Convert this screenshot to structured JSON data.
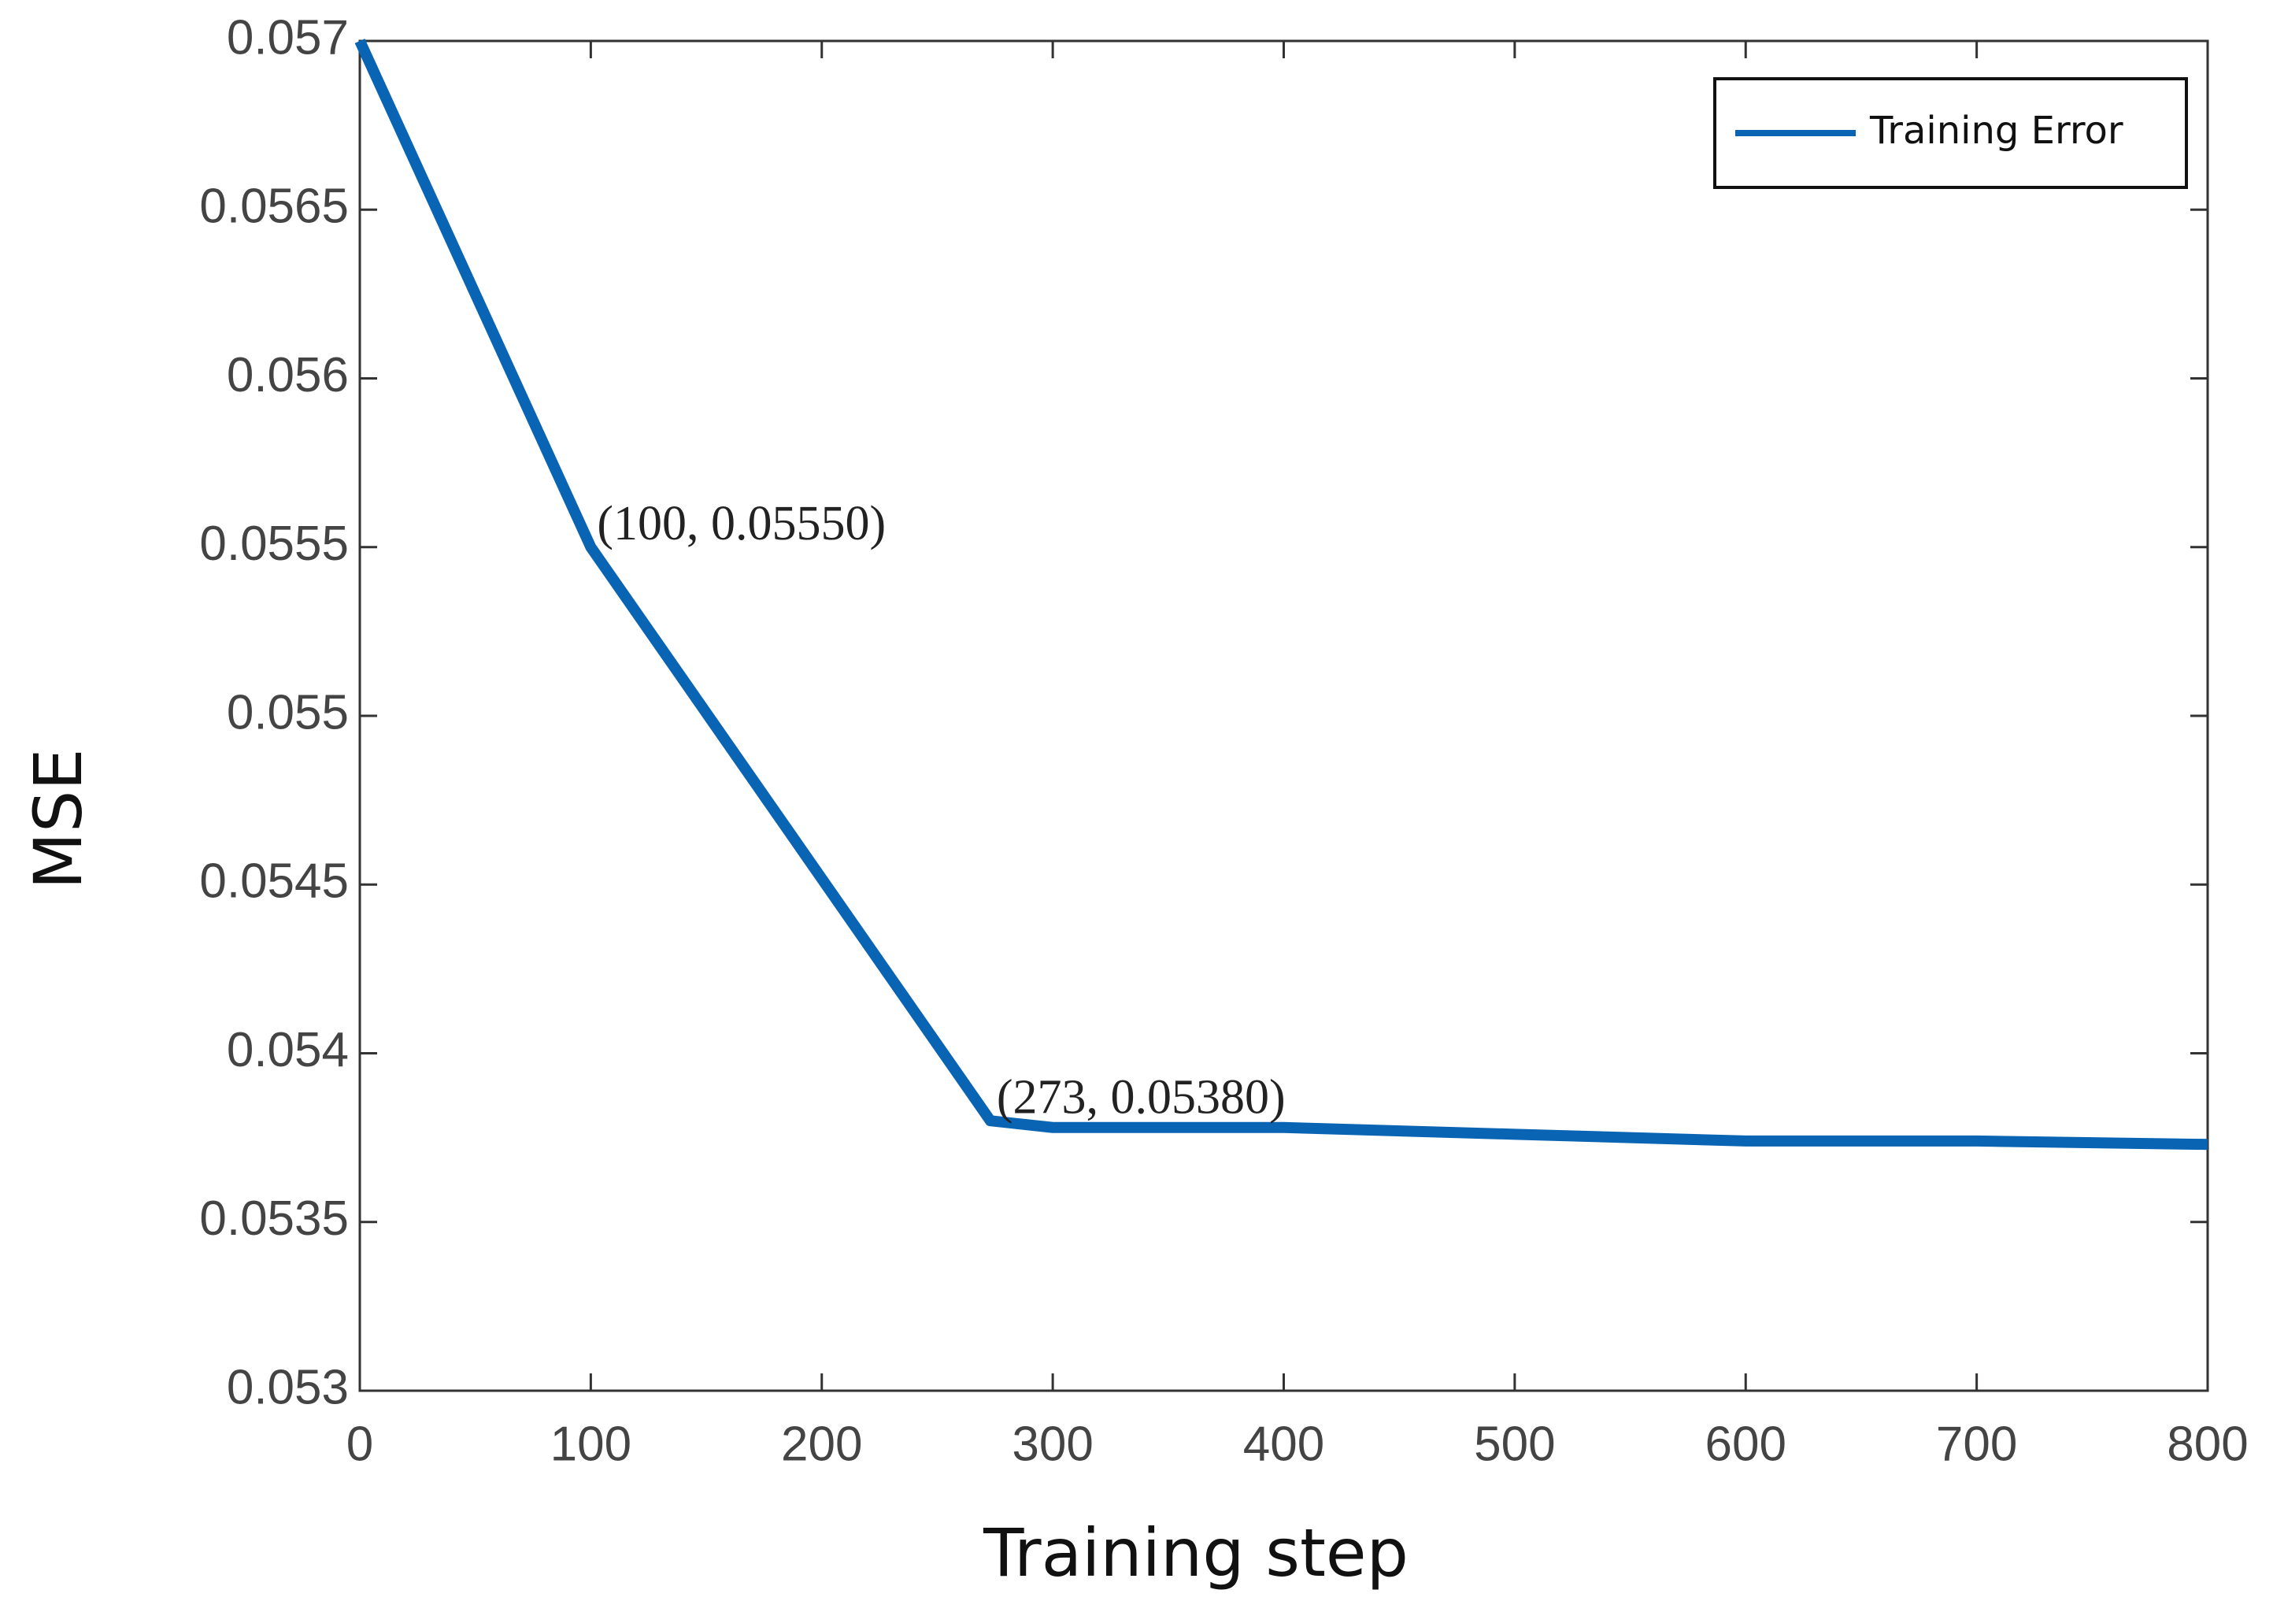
{
  "chart_data": {
    "type": "line",
    "xlabel": "Training step",
    "ylabel": "MSE",
    "x": [
      0,
      100,
      273,
      300,
      400,
      500,
      600,
      700,
      800
    ],
    "series": [
      {
        "name": "Training Error",
        "color": "#0a64b4",
        "values": [
          0.057,
          0.0555,
          0.0538,
          0.05378,
          0.05378,
          0.05376,
          0.05374,
          0.05374,
          0.05373
        ],
        "value_labels": [
          null,
          "(100, 0.05550)",
          "(273, 0.05380)",
          null,
          null,
          null,
          null,
          null,
          null
        ]
      }
    ],
    "xlim": [
      0,
      800
    ],
    "xticks": [
      0,
      100,
      200,
      300,
      400,
      500,
      600,
      700,
      800
    ],
    "ylim": [
      0.053,
      0.057
    ],
    "yticks": [
      0.053,
      0.0535,
      0.054,
      0.0545,
      0.055,
      0.0555,
      0.056,
      0.0565,
      0.057
    ],
    "grid": false,
    "legend": "upper right"
  }
}
